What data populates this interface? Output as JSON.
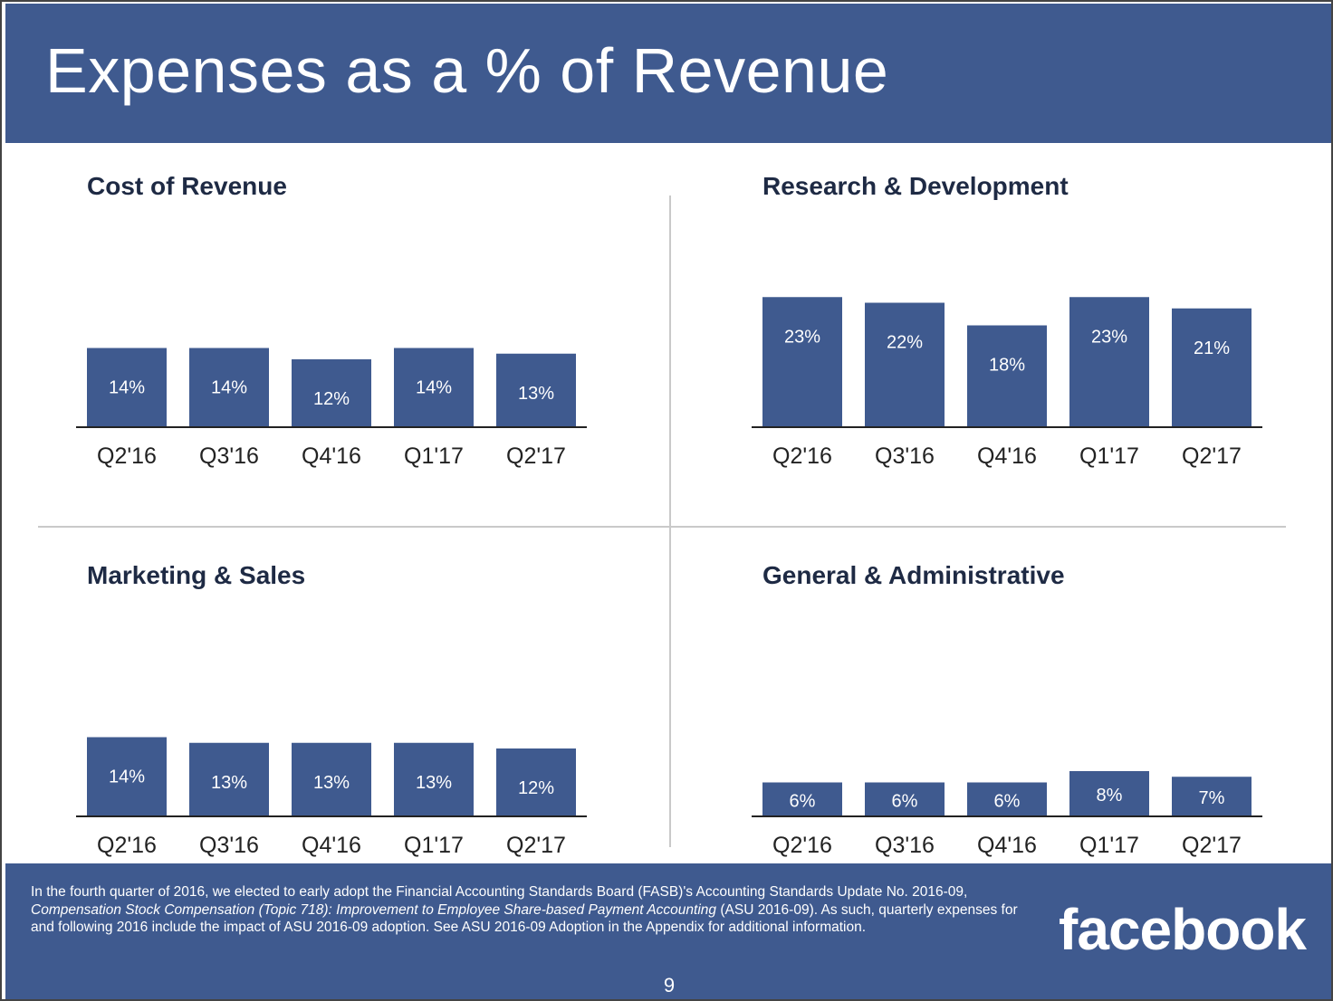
{
  "slide": {
    "title": "Expenses as a % of Revenue",
    "page_number": "9",
    "logo_text": "facebook",
    "footnote": {
      "part1": "In the fourth quarter of 2016, we elected to early adopt the Financial Accounting Standards Board (FASB)'s Accounting Standards Update No. 2016-09, ",
      "italic": "Compensation Stock Compensation (Topic 718): Improvement to Employee Share-based Payment Accounting",
      "part2": " (ASU 2016-09). As such, quarterly expenses for and following 2016 include the impact of ASU 2016-09 adoption. See ASU 2016-09 Adoption in the Appendix for additional information."
    }
  },
  "colors": {
    "header_bg": "#3f5a8f",
    "bar": "#3f5a8f",
    "bar_label": "#ffffff",
    "axis": "#222222",
    "title_text": "#1e2a44"
  },
  "chart_data": [
    {
      "type": "bar",
      "title": "Cost of Revenue",
      "categories": [
        "Q2'16",
        "Q3'16",
        "Q4'16",
        "Q1'17",
        "Q2'17"
      ],
      "values": [
        14,
        14,
        12,
        14,
        13
      ],
      "labels": [
        "14%",
        "14%",
        "12%",
        "14%",
        "13%"
      ],
      "ylim": [
        0,
        24
      ]
    },
    {
      "type": "bar",
      "title": "Research & Development",
      "categories": [
        "Q2'16",
        "Q3'16",
        "Q4'16",
        "Q1'17",
        "Q2'17"
      ],
      "values": [
        23,
        22,
        18,
        23,
        21
      ],
      "labels": [
        "23%",
        "22%",
        "18%",
        "23%",
        "21%"
      ],
      "ylim": [
        0,
        24
      ]
    },
    {
      "type": "bar",
      "title": "Marketing & Sales",
      "categories": [
        "Q2'16",
        "Q3'16",
        "Q4'16",
        "Q1'17",
        "Q2'17"
      ],
      "values": [
        14,
        13,
        13,
        13,
        12
      ],
      "labels": [
        "14%",
        "13%",
        "13%",
        "13%",
        "12%"
      ],
      "ylim": [
        0,
        24
      ]
    },
    {
      "type": "bar",
      "title": "General & Administrative",
      "categories": [
        "Q2'16",
        "Q3'16",
        "Q4'16",
        "Q1'17",
        "Q2'17"
      ],
      "values": [
        6,
        6,
        6,
        8,
        7
      ],
      "labels": [
        "6%",
        "6%",
        "6%",
        "8%",
        "7%"
      ],
      "ylim": [
        0,
        24
      ]
    }
  ]
}
